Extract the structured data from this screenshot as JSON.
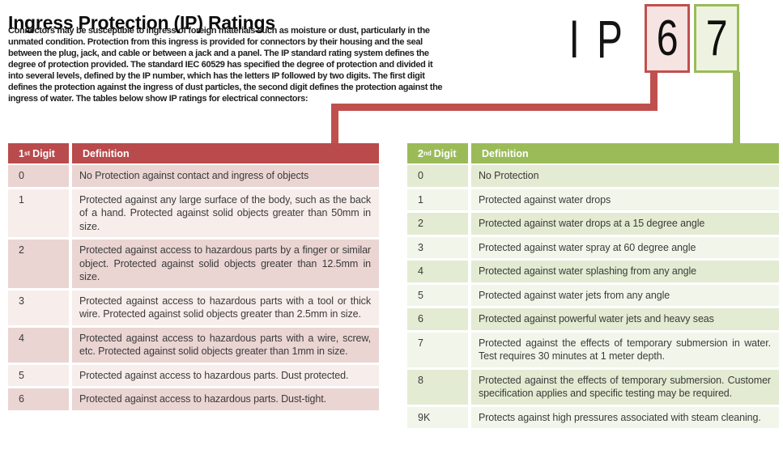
{
  "document": {
    "title": "Ingress Protection (IP) Ratings",
    "intro_lines": [
      {
        "text": "Connectors may be susceptible to ingress of foreign materials such as moisture or dust, particularly in the"
      },
      {
        "text": "unmated condition. Protection from this ingress is provided for connectors by their housing and the seal"
      },
      {
        "text": "between the plug, jack, and cable or between a jack and a panel. The IP standard rating system defines the"
      },
      {
        "text": "degree of protection provided. The standard IEC 60529 has specified the degree of protection and divided it"
      },
      {
        "text": "into several levels, defined by the IP number, which has the letters IP followed by two digits. The first digit"
      },
      {
        "text": "defines the protection against the ingress of dust particles, the second digit defines the protection against the"
      },
      {
        "text": "ingress of water. The tables below show IP ratings for electrical connectors:"
      }
    ]
  },
  "ip_badge": {
    "letter_i": "I",
    "letter_p": "P",
    "first_digit": "6",
    "second_digit": "7"
  },
  "colors": {
    "red_accent": "#C0504D",
    "red_header": "#B94B4D",
    "red_band_dark": "#EAD5D3",
    "red_band_light": "#F7EDEB",
    "red_box_fill": "#F6E4E3",
    "green_accent": "#9BBB59",
    "green_band_dark": "#E3EBD2",
    "green_band_light": "#F2F6EA",
    "green_box_fill": "#EEF3E1",
    "text_dark": "#3B3B3B"
  },
  "first_digit_table": {
    "header": {
      "digit_num": "1",
      "digit_ord": "st",
      "digit_word": "Digit",
      "definition": "Definition"
    },
    "rows": [
      {
        "digit": "0",
        "definition": "No Protection against contact and ingress of objects"
      },
      {
        "digit": "1",
        "definition": "Protected against any large surface of the body, such as the back of a hand. Protected against solid objects greater than 50mm in size."
      },
      {
        "digit": "2",
        "definition": "Protected against access to hazardous parts by a finger or similar object. Protected against solid objects greater than 12.5mm in size."
      },
      {
        "digit": "3",
        "definition": "Protected against access to hazardous parts with a tool or thick wire. Protected against solid objects greater than 2.5mm in size."
      },
      {
        "digit": "4",
        "definition": "Protected against access to hazardous parts with a wire, screw, etc. Protected against solid objects greater than 1mm in size."
      },
      {
        "digit": "5",
        "definition": "Protected against access to hazardous parts. Dust protected."
      },
      {
        "digit": "6",
        "definition": "Protected against access to hazardous parts. Dust-tight."
      }
    ]
  },
  "second_digit_table": {
    "header": {
      "digit_num": "2",
      "digit_ord": "nd",
      "digit_word": "Digit",
      "definition": "Definition"
    },
    "rows": [
      {
        "digit": "0",
        "definition": "No Protection"
      },
      {
        "digit": "1",
        "definition": "Protected against water drops"
      },
      {
        "digit": "2",
        "definition": "Protected against water drops at a 15 degree angle"
      },
      {
        "digit": "3",
        "definition": "Protected against water spray at 60 degree angle"
      },
      {
        "digit": "4",
        "definition": "Protected against water splashing from any angle"
      },
      {
        "digit": "5",
        "definition": "Protected against water jets from any angle"
      },
      {
        "digit": "6",
        "definition": "Protected against powerful water jets and heavy seas"
      },
      {
        "digit": "7",
        "definition": "Protected against the effects of temporary submersion in water. Test requires 30 minutes at 1 meter depth."
      },
      {
        "digit": "8",
        "definition": "Protected against the effects of temporary submersion. Customer specification applies and specific testing may be required."
      },
      {
        "digit": "9K",
        "definition": "Protects against high pressures associated with steam cleaning."
      }
    ]
  }
}
